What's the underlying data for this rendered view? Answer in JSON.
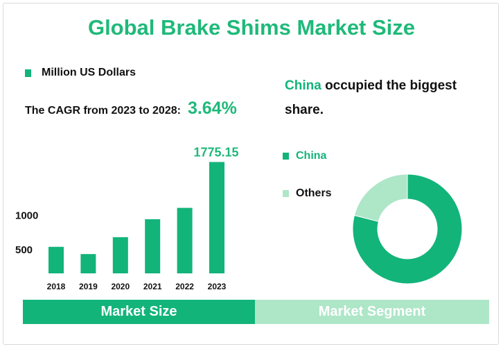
{
  "title": "Global Brake Shims Market Size",
  "unit_legend": "Million US Dollars",
  "cagr": {
    "label": "The CAGR from 2023 to 2028:",
    "value": "3.64%"
  },
  "china_note": {
    "highlight": "China",
    "rest": "occupied the biggest share."
  },
  "bands": {
    "left": "Market Size",
    "right": "Market Segment"
  },
  "colors": {
    "primary": "#12b47a",
    "light": "#aee6c8",
    "title": "#1fb97a"
  },
  "chart_data": [
    {
      "type": "bar",
      "categories": [
        "2018",
        "2019",
        "2020",
        "2021",
        "2022",
        "2023"
      ],
      "series": [
        {
          "name": "Million US Dollars",
          "values": [
            545,
            440,
            685,
            945,
            1110,
            1775.15
          ]
        }
      ],
      "value_labels": {
        "2023": "1775.15"
      },
      "ylabel": "",
      "yticks": [
        500,
        1000
      ],
      "ylim": [
        160,
        1800
      ],
      "grid": false,
      "color": "#12b47a"
    },
    {
      "type": "pie",
      "style": "donut",
      "labels": [
        "China",
        "Others"
      ],
      "values": [
        79,
        21
      ],
      "colors": [
        "#12b47a",
        "#aee6c8"
      ],
      "legend": "left"
    }
  ]
}
